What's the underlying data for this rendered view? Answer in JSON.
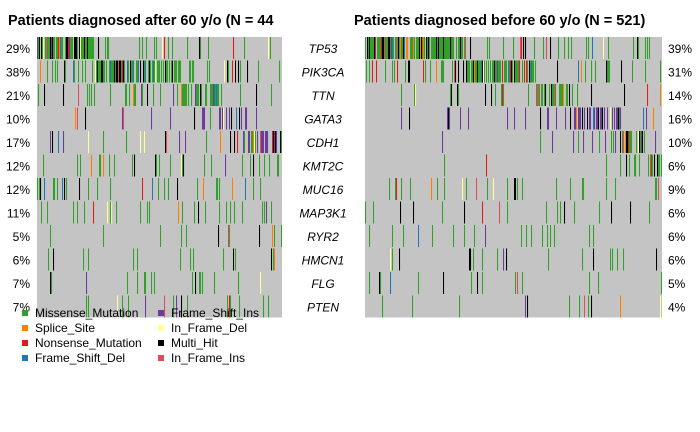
{
  "chart_data": {
    "type": "heatmap",
    "panels": [
      {
        "title": "Patients diagnosed after 60 y/o (N = 44",
        "percent_labels": [
          "29%",
          "38%",
          "21%",
          "10%",
          "17%",
          "12%",
          "12%",
          "11%",
          "5%",
          "6%",
          "7%",
          "7%"
        ],
        "percent_values": [
          29,
          38,
          21,
          10,
          17,
          12,
          12,
          11,
          5,
          6,
          7,
          7
        ]
      },
      {
        "title": "Patients diagnosed before 60 y/o (N = 521)",
        "percent_labels": [
          "39%",
          "31%",
          "14%",
          "16%",
          "10%",
          "6%",
          "9%",
          "6%",
          "6%",
          "6%",
          "5%",
          "4%"
        ],
        "percent_values": [
          39,
          31,
          14,
          16,
          10,
          6,
          9,
          6,
          6,
          6,
          5,
          4
        ]
      }
    ],
    "genes": [
      "TP53",
      "PIK3CA",
      "TTN",
      "GATA3",
      "CDH1",
      "KMT2C",
      "MUC16",
      "MAP3K1",
      "RYR2",
      "HMCN1",
      "FLG",
      "PTEN"
    ],
    "legend": [
      {
        "label": "Missense_Mutation",
        "color": "#33a02c"
      },
      {
        "label": "Splice_Site",
        "color": "#ff7f00"
      },
      {
        "label": "Nonsense_Mutation",
        "color": "#e31a1c"
      },
      {
        "label": "Frame_Shift_Del",
        "color": "#1f78b4"
      },
      {
        "label": "Frame_Shift_Ins",
        "color": "#6a3d9a"
      },
      {
        "label": "In_Frame_Del",
        "color": "#ffff99"
      },
      {
        "label": "Multi_Hit",
        "color": "#000000"
      },
      {
        "label": "In_Frame_Ins",
        "color": "#e04d5a"
      }
    ],
    "background_color": "#c4c4c4"
  }
}
